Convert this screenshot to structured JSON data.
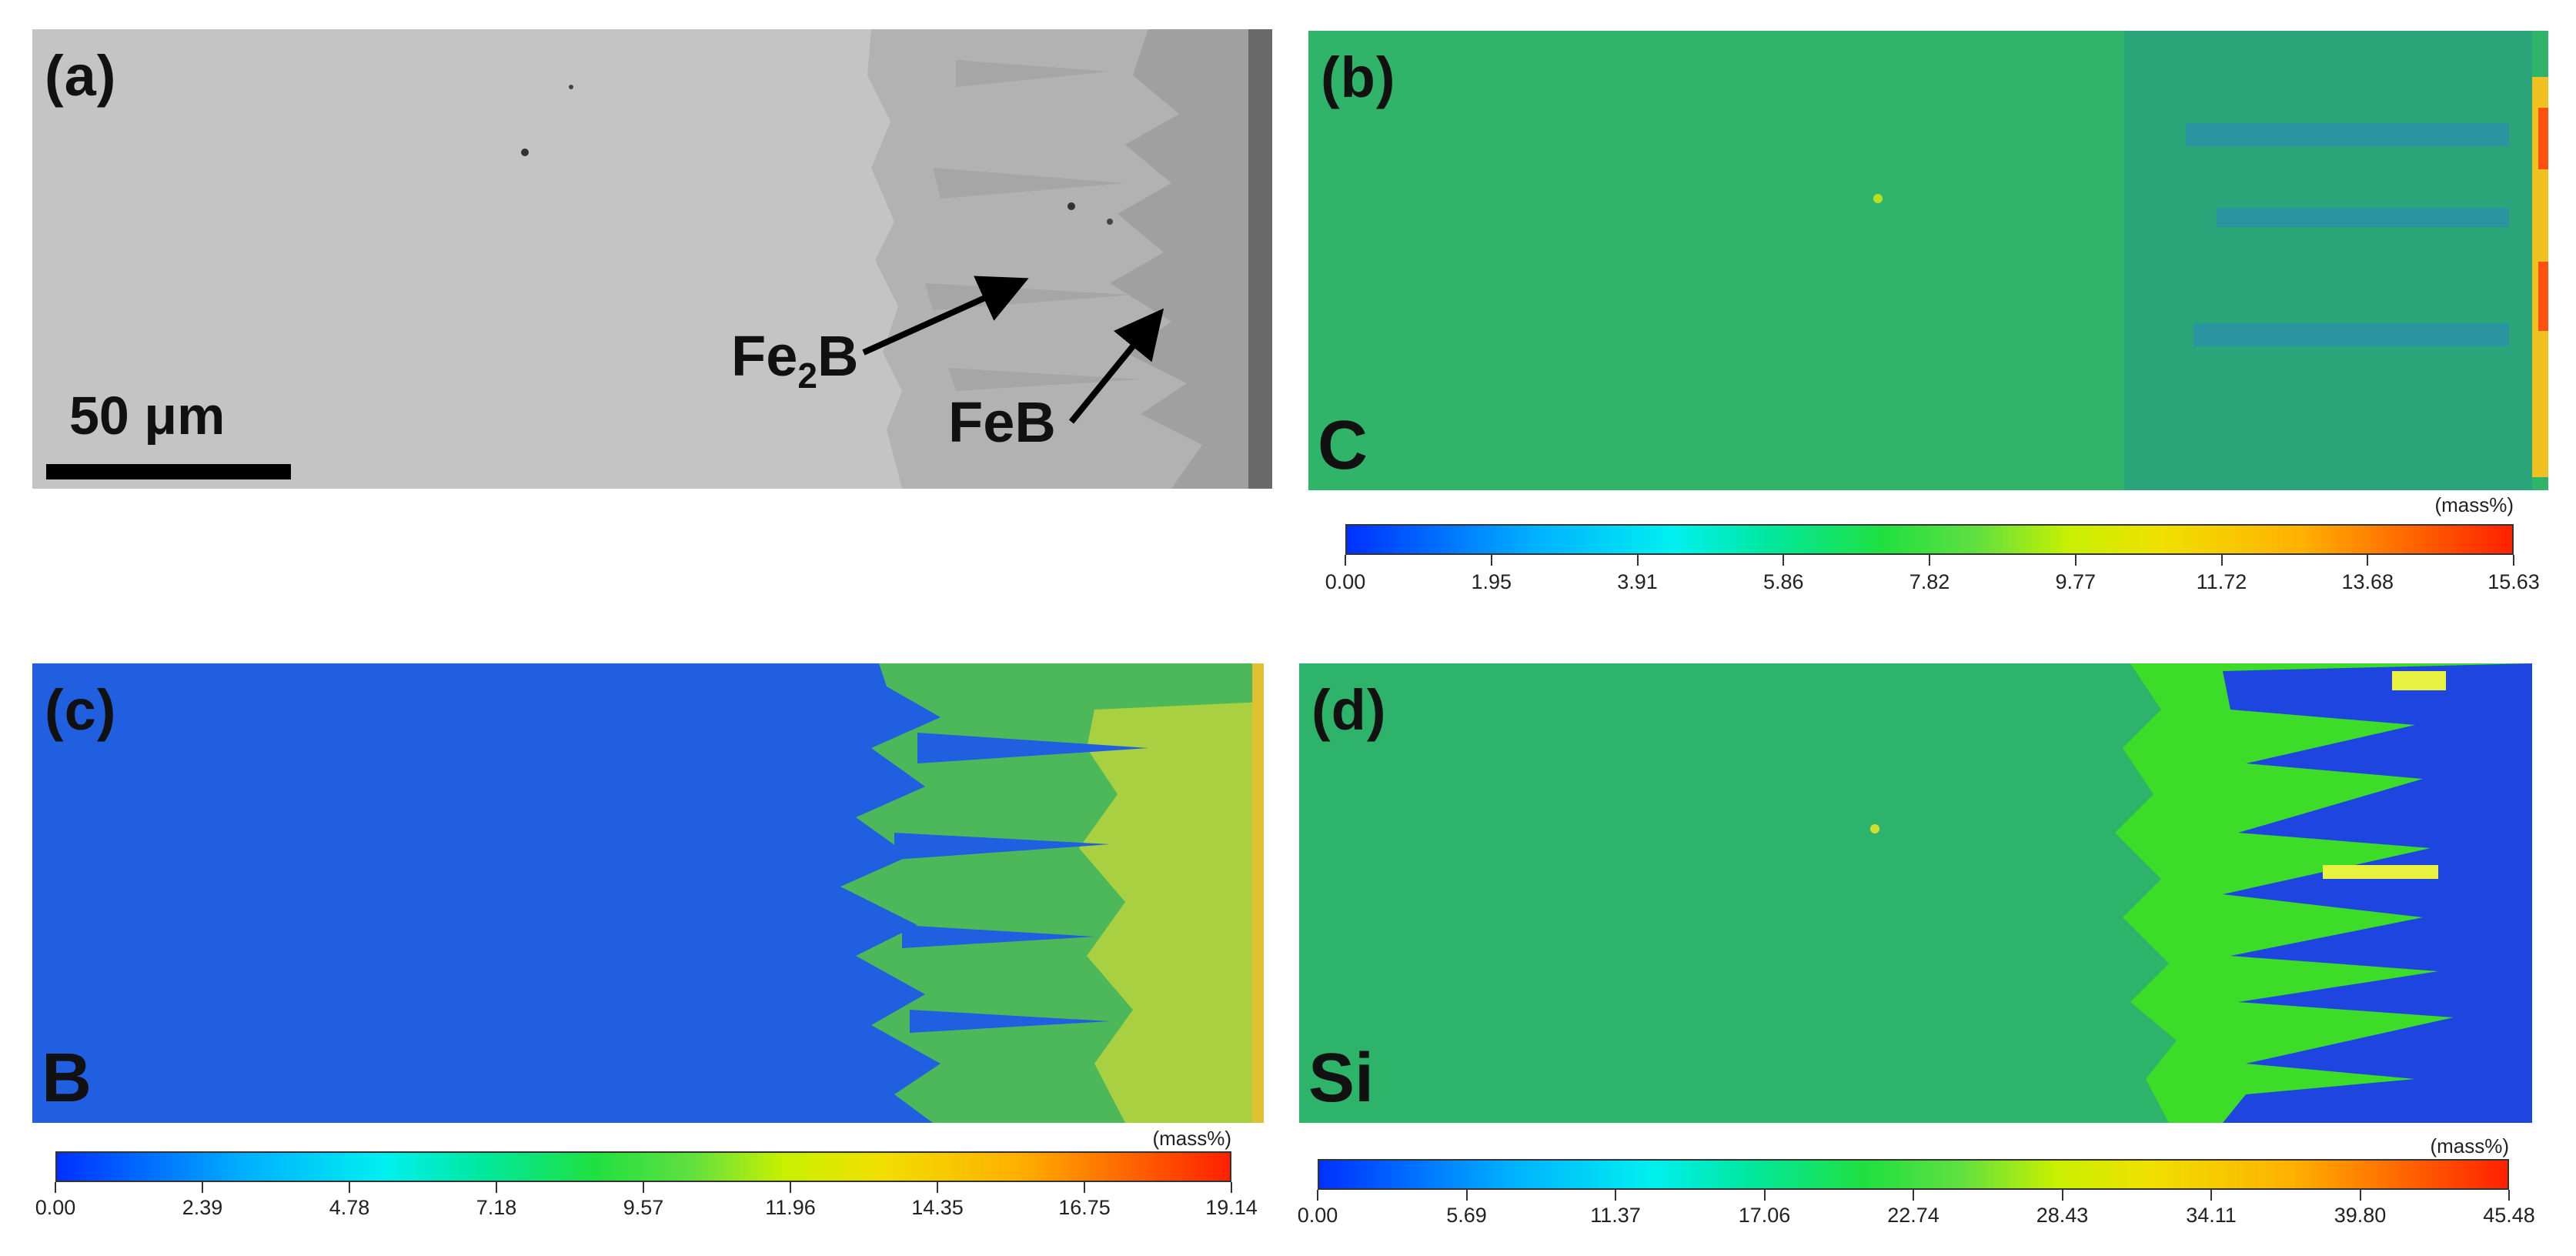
{
  "panels": {
    "a": {
      "label": "(a)",
      "scale_bar": "50 μm",
      "fe2b_main": "Fe",
      "fe2b_sub": "2",
      "fe2b_end": "B",
      "feb": "FeB"
    },
    "b": {
      "label": "(b)",
      "element": "C"
    },
    "c": {
      "label": "(c)",
      "element": "B"
    },
    "d": {
      "label": "(d)",
      "element": "Si"
    }
  },
  "colorbars": {
    "b": {
      "unit": "(mass%)",
      "ticks": [
        "0.00",
        "1.95",
        "3.91",
        "5.86",
        "7.82",
        "9.77",
        "11.72",
        "13.68",
        "15.63"
      ]
    },
    "c": {
      "unit": "(mass%)",
      "ticks": [
        "0.00",
        "2.39",
        "4.78",
        "7.18",
        "9.57",
        "11.96",
        "14.35",
        "16.75",
        "19.14"
      ]
    },
    "d": {
      "unit": "(mass%)",
      "ticks": [
        "0.00",
        "5.69",
        "11.37",
        "17.06",
        "22.74",
        "28.43",
        "34.11",
        "39.80",
        "45.48"
      ]
    }
  },
  "colors": {
    "matrix_gray": "#c4c4c4",
    "fe2b_gray": "#b0b0b0",
    "feb_gray": "#9c9c9c",
    "map_blue": "#1f5fe0",
    "map_green": "#2db36a",
    "map_yellow_green": "#9ad43a",
    "map_bright_green": "#3cdc28"
  }
}
